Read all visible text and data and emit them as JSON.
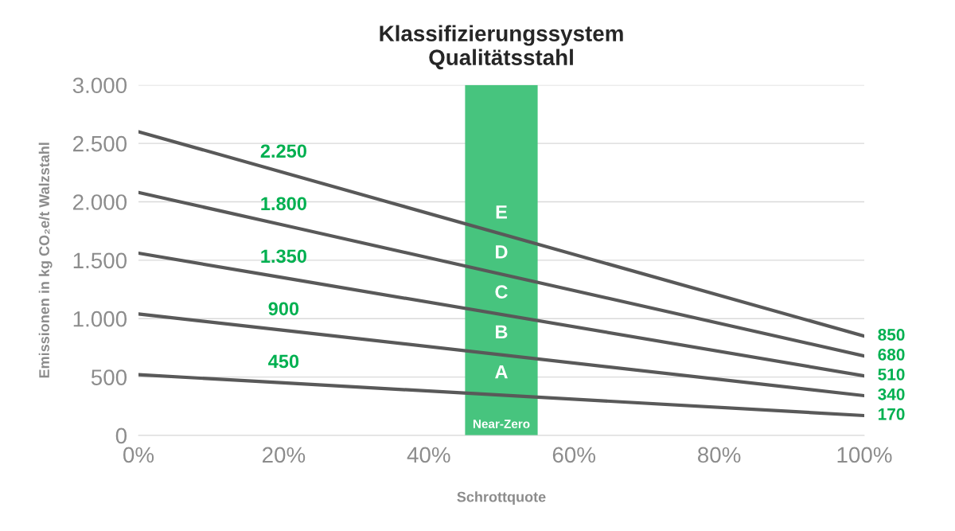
{
  "chart_data": {
    "type": "line",
    "title": "Klassifizierungssystem\nQualitätsstahl",
    "xlabel": "Schrottquote",
    "ylabel": "Emissionen in kg CO₂e/t Walzstahl",
    "x": [
      0,
      20,
      100
    ],
    "series": [
      {
        "color": "#595959",
        "values": [
          2600,
          2250,
          850
        ],
        "value_labels": [
          null,
          "2.250",
          "850"
        ]
      },
      {
        "color": "#595959",
        "values": [
          2080,
          1800,
          680
        ],
        "value_labels": [
          null,
          "1.800",
          "680"
        ]
      },
      {
        "color": "#595959",
        "values": [
          1560,
          1350,
          510
        ],
        "value_labels": [
          null,
          "1.350",
          "510"
        ]
      },
      {
        "color": "#595959",
        "values": [
          1040,
          900,
          340
        ],
        "value_labels": [
          null,
          "900",
          "340"
        ]
      },
      {
        "color": "#595959",
        "values": [
          520,
          450,
          170
        ],
        "value_labels": [
          null,
          "450",
          "170"
        ]
      }
    ],
    "xlim": [
      0,
      100
    ],
    "ylim": [
      0,
      3000
    ],
    "xticks": [
      {
        "value": 0,
        "label": "0%"
      },
      {
        "value": 20,
        "label": "20%"
      },
      {
        "value": 40,
        "label": "40%"
      },
      {
        "value": 60,
        "label": "60%"
      },
      {
        "value": 80,
        "label": "80%"
      },
      {
        "value": 100,
        "label": "100%"
      }
    ],
    "yticks": [
      {
        "value": 0,
        "label": "0"
      },
      {
        "value": 500,
        "label": "500"
      },
      {
        "value": 1000,
        "label": "1.000"
      },
      {
        "value": 1500,
        "label": "1.500"
      },
      {
        "value": 2000,
        "label": "2.000"
      },
      {
        "value": 2500,
        "label": "2.500"
      },
      {
        "value": 3000,
        "label": "3.000"
      }
    ],
    "bands": [
      {
        "axis": "x",
        "from": 45,
        "to": 55,
        "label": "Near-Zero",
        "color": "#47c47e"
      }
    ],
    "annotations": [
      "A",
      "B",
      "C",
      "D",
      "E"
    ],
    "grid": "y",
    "marker": "none",
    "line_style": "solid"
  }
}
